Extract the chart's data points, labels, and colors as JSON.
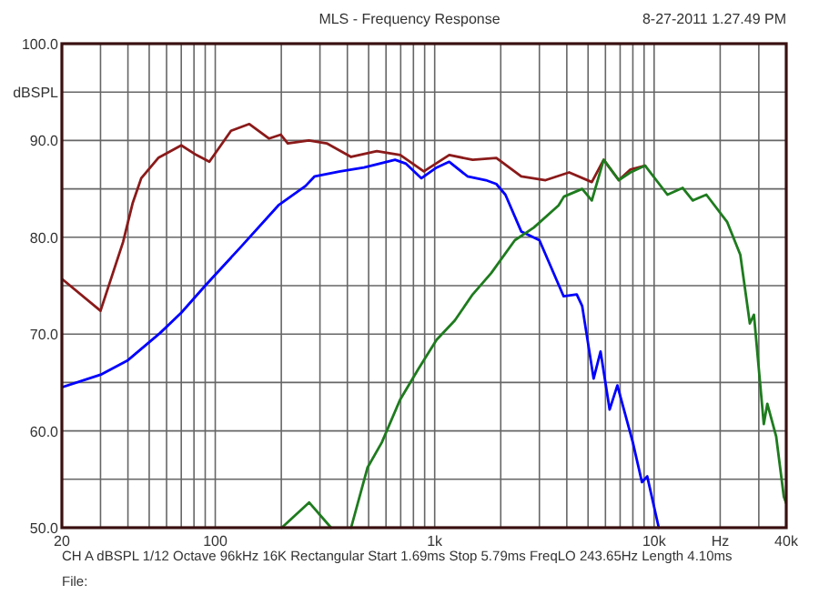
{
  "chart_data": {
    "type": "line",
    "title": "MLS - Frequency Response",
    "log": "x",
    "grid": true,
    "xlim": [
      20,
      40000
    ],
    "ylim": [
      50,
      100
    ],
    "xticks": [
      20,
      {
        "value": 30,
        "label": null
      },
      {
        "value": 40,
        "label": null
      },
      {
        "value": 50,
        "label": null
      },
      {
        "value": 60,
        "label": null
      },
      {
        "value": 70,
        "label": null
      },
      {
        "value": 80,
        "label": null
      },
      {
        "value": 90,
        "label": null
      },
      100,
      {
        "value": 200,
        "label": null
      },
      {
        "value": 300,
        "label": null
      },
      {
        "value": 400,
        "label": null
      },
      {
        "value": 500,
        "label": null
      },
      {
        "value": 600,
        "label": null
      },
      {
        "value": 700,
        "label": null
      },
      {
        "value": 800,
        "label": null
      },
      {
        "value": 900,
        "label": null
      },
      {
        "value": 1000,
        "label": "1k"
      },
      {
        "value": 2000,
        "label": null
      },
      {
        "value": 3000,
        "label": null
      },
      {
        "value": 4000,
        "label": null
      },
      {
        "value": 5000,
        "label": null
      },
      {
        "value": 6000,
        "label": null
      },
      {
        "value": 7000,
        "label": null
      },
      {
        "value": 8000,
        "label": null
      },
      {
        "value": 9000,
        "label": null
      },
      {
        "value": 10000,
        "label": "10k"
      },
      {
        "value": 20000,
        "label": "Hz"
      },
      {
        "value": 30000,
        "label": null
      },
      {
        "value": 40000,
        "label": "40k"
      }
    ],
    "yticks": [
      {
        "value": 50,
        "label": "50.0"
      },
      {
        "value": 55,
        "label": null
      },
      {
        "value": 60,
        "label": "60.0"
      },
      {
        "value": 65,
        "label": null
      },
      {
        "value": 70,
        "label": "70.0"
      },
      {
        "value": 75,
        "label": null
      },
      {
        "value": 80,
        "label": "80.0"
      },
      {
        "value": 85,
        "label": null
      },
      {
        "value": 90,
        "label": "90.0"
      },
      {
        "value": 95,
        "label": "dBSPL"
      },
      {
        "value": 100,
        "label": "100.0"
      }
    ],
    "annotations": [
      "8-27-2011 1.27.49 PM",
      "CH A   dBSPL   1/12 Octave   96kHz   16K   Rectangular   Start 1.69ms   Stop 5.79ms   FreqLO 243.65Hz   Length 4.10ms",
      "File:"
    ],
    "series": [
      {
        "color": "#8b1a1a",
        "x": [
          20,
          30,
          38,
          42,
          46,
          55,
          70,
          82,
          94,
          118,
          143,
          176,
          199,
          214,
          267,
          322,
          416,
          545,
          697,
          892,
          1165,
          1490,
          1910,
          2480,
          3200,
          4100,
          5200,
          5890,
          6900,
          7800,
          9100
        ],
        "values": [
          75.7,
          72.4,
          79.5,
          83.5,
          86.1,
          88.2,
          89.5,
          88.5,
          87.8,
          91.0,
          91.7,
          90.2,
          90.6,
          89.7,
          90.0,
          89.7,
          88.3,
          88.9,
          88.5,
          86.8,
          88.5,
          88.0,
          88.2,
          86.3,
          85.9,
          86.7,
          85.7,
          88.0,
          85.9,
          87.0,
          87.4
        ]
      },
      {
        "color": "#0000ff",
        "x": [
          20,
          30,
          40,
          56,
          70,
          90,
          132,
          194,
          258,
          284,
          371,
          476,
          660,
          740,
          870,
          1020,
          1165,
          1410,
          1710,
          1910,
          2100,
          2480,
          3000,
          3870,
          4440,
          4700,
          5300,
          5700,
          6270,
          6800,
          8000,
          8800,
          9300,
          10500
        ],
        "values": [
          64.5,
          65.8,
          67.3,
          70.1,
          72.2,
          75.0,
          79.1,
          83.3,
          85.3,
          86.3,
          86.8,
          87.2,
          88.0,
          87.6,
          86.1,
          87.2,
          87.8,
          86.3,
          85.9,
          85.5,
          84.4,
          80.6,
          79.7,
          73.9,
          74.1,
          72.9,
          65.4,
          68.2,
          62.2,
          64.7,
          58.8,
          54.7,
          55.3,
          50.0
        ]
      },
      {
        "color": "#1e7b1e",
        "x": [
          201,
          268,
          337,
          380,
          416,
          494,
          574,
          695,
          843,
          1020,
          1235,
          1490,
          1810,
          2320,
          2830,
          3670,
          3880,
          4700,
          5200,
          5890,
          6900,
          7800,
          9100,
          11500,
          13500,
          15000,
          17300,
          21500,
          24700,
          27300,
          28500,
          31600,
          32800,
          36000,
          39000,
          40000
        ],
        "values": [
          50,
          52.6,
          50,
          null,
          50,
          56.2,
          58.8,
          63.2,
          66.4,
          69.4,
          71.4,
          74.1,
          76.3,
          79.7,
          81.0,
          83.3,
          84.2,
          85.0,
          83.8,
          88.0,
          85.9,
          86.7,
          87.4,
          84.4,
          85.1,
          83.8,
          84.4,
          81.6,
          78.2,
          71.1,
          72.0,
          60.7,
          62.8,
          59.4,
          53.2,
          52.5
        ]
      }
    ]
  }
}
